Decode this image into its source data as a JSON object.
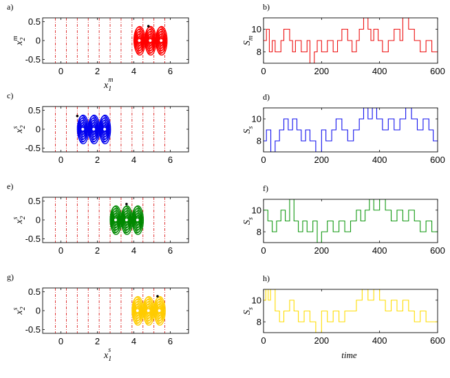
{
  "figure": {
    "panels": [
      {
        "letter": "a)",
        "ylabel_main": "x",
        "ylabel_sub": "2",
        "ylabel_sup": "m",
        "xlabel_main": "x",
        "xlabel_sub": "1",
        "xlabel_sup": "m"
      },
      {
        "letter": "b)",
        "ylabel_main": "S",
        "ylabel_sub": "m"
      },
      {
        "letter": "c)",
        "ylabel_main": "x",
        "ylabel_sub": "2",
        "ylabel_sup": "s"
      },
      {
        "letter": "d)",
        "ylabel_main": "S",
        "ylabel_sub": "s"
      },
      {
        "letter": "e)",
        "ylabel_main": "x",
        "ylabel_sub": "2",
        "ylabel_sup": "s"
      },
      {
        "letter": "f)",
        "ylabel_main": "S",
        "ylabel_sub": "s"
      },
      {
        "letter": "g)",
        "ylabel_main": "x",
        "ylabel_sub": "2",
        "ylabel_sup": "s",
        "xlabel_main": "x",
        "xlabel_sub": "1",
        "xlabel_sup": "s"
      },
      {
        "letter": "h)",
        "ylabel_main": "S",
        "ylabel_sub": "s",
        "xlabel": "time"
      }
    ]
  },
  "chart_data": [
    {
      "panel": "a",
      "type": "scatter",
      "xlim": [
        -1,
        7
      ],
      "ylim": [
        -0.6,
        0.6
      ],
      "xticks": [
        0,
        2,
        4,
        6
      ],
      "yticks": [
        0.5,
        0,
        -0.5
      ],
      "xtick_labels": [
        "0",
        "2",
        "4",
        "6"
      ],
      "ytick_labels": [
        "0.5",
        "0",
        "-0.5"
      ],
      "thresholds": [
        -0.3,
        0.3,
        0.9,
        1.5,
        2.1,
        2.7,
        3.3,
        3.9,
        4.5,
        5.1,
        5.7
      ],
      "threshold_color": "#dd2222",
      "attractor_centers": [
        4.3,
        4.9,
        5.5
      ],
      "attractor_color": "#ff0000",
      "marker": [
        4.8,
        0.38
      ]
    },
    {
      "panel": "b",
      "type": "line",
      "xlim": [
        0,
        600
      ],
      "ylim": [
        7,
        11
      ],
      "xticks": [
        0,
        200,
        400,
        600
      ],
      "yticks": [
        8,
        10
      ],
      "xtick_labels": [
        "0",
        "200",
        "400",
        "600"
      ],
      "ytick_labels": [
        "8",
        "10"
      ],
      "color": "#ee1111",
      "x": [
        0,
        10,
        20,
        30,
        40,
        60,
        70,
        90,
        100,
        110,
        130,
        150,
        160,
        175,
        185,
        200,
        220,
        240,
        255,
        270,
        290,
        305,
        320,
        330,
        345,
        360,
        370,
        380,
        395,
        410,
        430,
        450,
        470,
        480,
        500,
        520,
        540,
        560,
        580,
        600
      ],
      "y": [
        9,
        10,
        8,
        9,
        8,
        9,
        10,
        9,
        8,
        9,
        8,
        9,
        7,
        8,
        9,
        8,
        9,
        8,
        9,
        10,
        9,
        8,
        9,
        10,
        11,
        10,
        9,
        10,
        9,
        8,
        9,
        10,
        9,
        11,
        10,
        9,
        8,
        9,
        8,
        8
      ]
    },
    {
      "panel": "c",
      "type": "scatter",
      "xlim": [
        -1,
        7
      ],
      "ylim": [
        -0.6,
        0.6
      ],
      "xticks": [
        0,
        2,
        4,
        6
      ],
      "yticks": [
        0.5,
        0,
        -0.5
      ],
      "xtick_labels": [
        "0",
        "2",
        "4",
        "6"
      ],
      "ytick_labels": [
        "0.5",
        "0",
        "-0.5"
      ],
      "thresholds": [
        -0.3,
        0.3,
        0.9,
        1.5,
        2.1,
        2.7,
        3.3,
        3.9,
        4.5,
        5.1,
        5.7
      ],
      "threshold_color": "#dd2222",
      "attractor_centers": [
        1.2,
        1.8,
        2.4
      ],
      "attractor_color": "#0000ee",
      "marker": [
        0.9,
        0.35
      ]
    },
    {
      "panel": "d",
      "type": "line",
      "xlim": [
        0,
        600
      ],
      "ylim": [
        7,
        11
      ],
      "xticks": [
        0,
        200,
        400,
        600
      ],
      "yticks": [
        8,
        10
      ],
      "xtick_labels": [
        "0",
        "200",
        "400",
        "600"
      ],
      "ytick_labels": [
        "8",
        "10"
      ],
      "color": "#1111ee",
      "x": [
        0,
        10,
        25,
        40,
        55,
        70,
        85,
        100,
        115,
        130,
        145,
        160,
        180,
        200,
        215,
        235,
        250,
        270,
        290,
        310,
        330,
        345,
        360,
        375,
        390,
        410,
        430,
        450,
        470,
        490,
        510,
        530,
        550,
        570,
        585,
        600
      ],
      "y": [
        8,
        9,
        7,
        8,
        9,
        10,
        9,
        10,
        9,
        8,
        9,
        8,
        7,
        9,
        8,
        9,
        10,
        9,
        8,
        9,
        10,
        11,
        10,
        11,
        10,
        9,
        10,
        9,
        10,
        11,
        10,
        9,
        10,
        9,
        8,
        8
      ]
    },
    {
      "panel": "e",
      "type": "scatter",
      "xlim": [
        -1,
        7
      ],
      "ylim": [
        -0.6,
        0.6
      ],
      "xticks": [
        0,
        2,
        4,
        6
      ],
      "yticks": [
        0.5,
        0,
        -0.5
      ],
      "xtick_labels": [
        "0",
        "2",
        "4",
        "6"
      ],
      "ytick_labels": [
        "0.5",
        "0",
        "-0.5"
      ],
      "thresholds": [
        -0.3,
        0.3,
        0.9,
        1.5,
        2.1,
        2.7,
        3.3,
        3.9,
        4.5,
        5.1,
        5.7
      ],
      "threshold_color": "#dd2222",
      "attractor_centers": [
        3.0,
        3.6,
        4.2
      ],
      "attractor_color": "#008800",
      "marker": [
        3.6,
        0.42
      ]
    },
    {
      "panel": "f",
      "type": "line",
      "xlim": [
        0,
        600
      ],
      "ylim": [
        7,
        11
      ],
      "xticks": [
        0,
        200,
        400,
        600
      ],
      "yticks": [
        8,
        10
      ],
      "xtick_labels": [
        "0",
        "200",
        "400",
        "600"
      ],
      "ytick_labels": [
        "8",
        "10"
      ],
      "color": "#119911",
      "x": [
        0,
        15,
        30,
        45,
        60,
        75,
        90,
        105,
        120,
        135,
        150,
        170,
        185,
        200,
        220,
        240,
        260,
        280,
        300,
        320,
        335,
        350,
        365,
        380,
        400,
        420,
        440,
        460,
        480,
        500,
        520,
        540,
        560,
        580,
        600
      ],
      "y": [
        10,
        9,
        8,
        9,
        10,
        9,
        11,
        9,
        8,
        9,
        8,
        9,
        7,
        8,
        9,
        8,
        9,
        8,
        9,
        10,
        9,
        10,
        11,
        10,
        11,
        10,
        9,
        10,
        9,
        10,
        9,
        8,
        9,
        8,
        8
      ]
    },
    {
      "panel": "g",
      "type": "scatter",
      "xlim": [
        -1,
        7
      ],
      "ylim": [
        -0.6,
        0.6
      ],
      "xticks": [
        0,
        2,
        4,
        6
      ],
      "yticks": [
        0.5,
        0,
        -0.5
      ],
      "xtick_labels": [
        "0",
        "2",
        "4",
        "6"
      ],
      "ytick_labels": [
        "0.5",
        "0",
        "-0.5"
      ],
      "thresholds": [
        -0.3,
        0.3,
        0.9,
        1.5,
        2.1,
        2.7,
        3.3,
        3.9,
        4.5,
        5.1,
        5.7
      ],
      "threshold_color": "#dd2222",
      "attractor_centers": [
        4.2,
        4.8,
        5.4
      ],
      "attractor_color": "#ffcc00",
      "marker": [
        5.3,
        0.38
      ]
    },
    {
      "panel": "h",
      "type": "line",
      "xlim": [
        0,
        600
      ],
      "ylim": [
        7,
        11
      ],
      "xticks": [
        0,
        200,
        400,
        600
      ],
      "yticks": [
        8,
        10
      ],
      "xtick_labels": [
        "0",
        "200",
        "400",
        "600"
      ],
      "ytick_labels": [
        "8",
        "10"
      ],
      "color": "#ffdd00",
      "x": [
        0,
        8,
        16,
        24,
        40,
        55,
        70,
        90,
        105,
        120,
        140,
        160,
        180,
        200,
        220,
        240,
        260,
        280,
        300,
        320,
        340,
        360,
        380,
        400,
        420,
        440,
        460,
        480,
        500,
        520,
        540,
        560,
        580,
        600
      ],
      "y": [
        10,
        11,
        10,
        11,
        9,
        8,
        9,
        10,
        9,
        8,
        9,
        8,
        7,
        9,
        8,
        9,
        8,
        9,
        9,
        10,
        11,
        10,
        11,
        10,
        9,
        10,
        9,
        10,
        9,
        8,
        9,
        8,
        8,
        8
      ]
    }
  ]
}
